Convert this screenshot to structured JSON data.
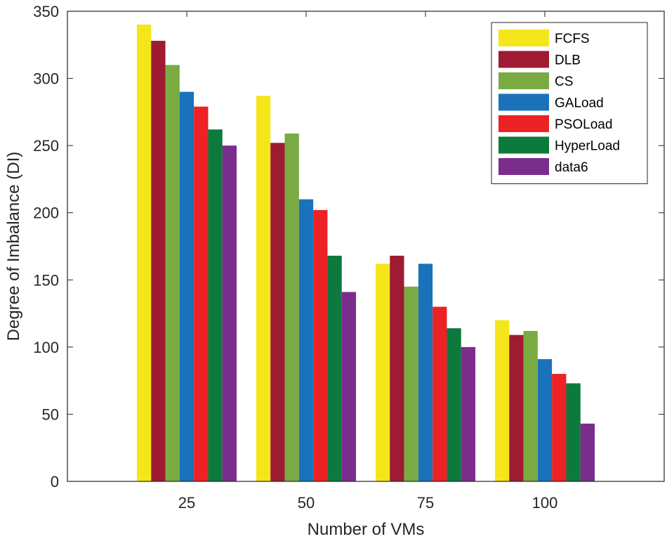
{
  "chart_data": {
    "type": "bar",
    "title": "",
    "xlabel": "Number of VMs",
    "ylabel": "Degree of Imbalance (DI)",
    "categories": [
      "25",
      "50",
      "75",
      "100"
    ],
    "ylim": [
      0,
      350
    ],
    "yticks": [
      0,
      50,
      100,
      150,
      200,
      250,
      300,
      350
    ],
    "legend_position": "top-right",
    "series": [
      {
        "name": "FCFS",
        "color": "#f5e61a",
        "values": [
          340,
          287,
          162,
          120
        ]
      },
      {
        "name": "DLB",
        "color": "#9e1b32",
        "values": [
          328,
          252,
          168,
          109
        ]
      },
      {
        "name": "CS",
        "color": "#7aab43",
        "values": [
          310,
          259,
          145,
          112
        ]
      },
      {
        "name": "GALoad",
        "color": "#1a72bb",
        "values": [
          290,
          210,
          162,
          91
        ]
      },
      {
        "name": "PSOLoad",
        "color": "#ed2224",
        "values": [
          279,
          202,
          130,
          80
        ]
      },
      {
        "name": "HyperLoad",
        "color": "#0b7a3c",
        "values": [
          262,
          168,
          114,
          73
        ]
      },
      {
        "name": "data6",
        "color": "#7b2d8e",
        "values": [
          250,
          141,
          100,
          43
        ]
      }
    ]
  }
}
